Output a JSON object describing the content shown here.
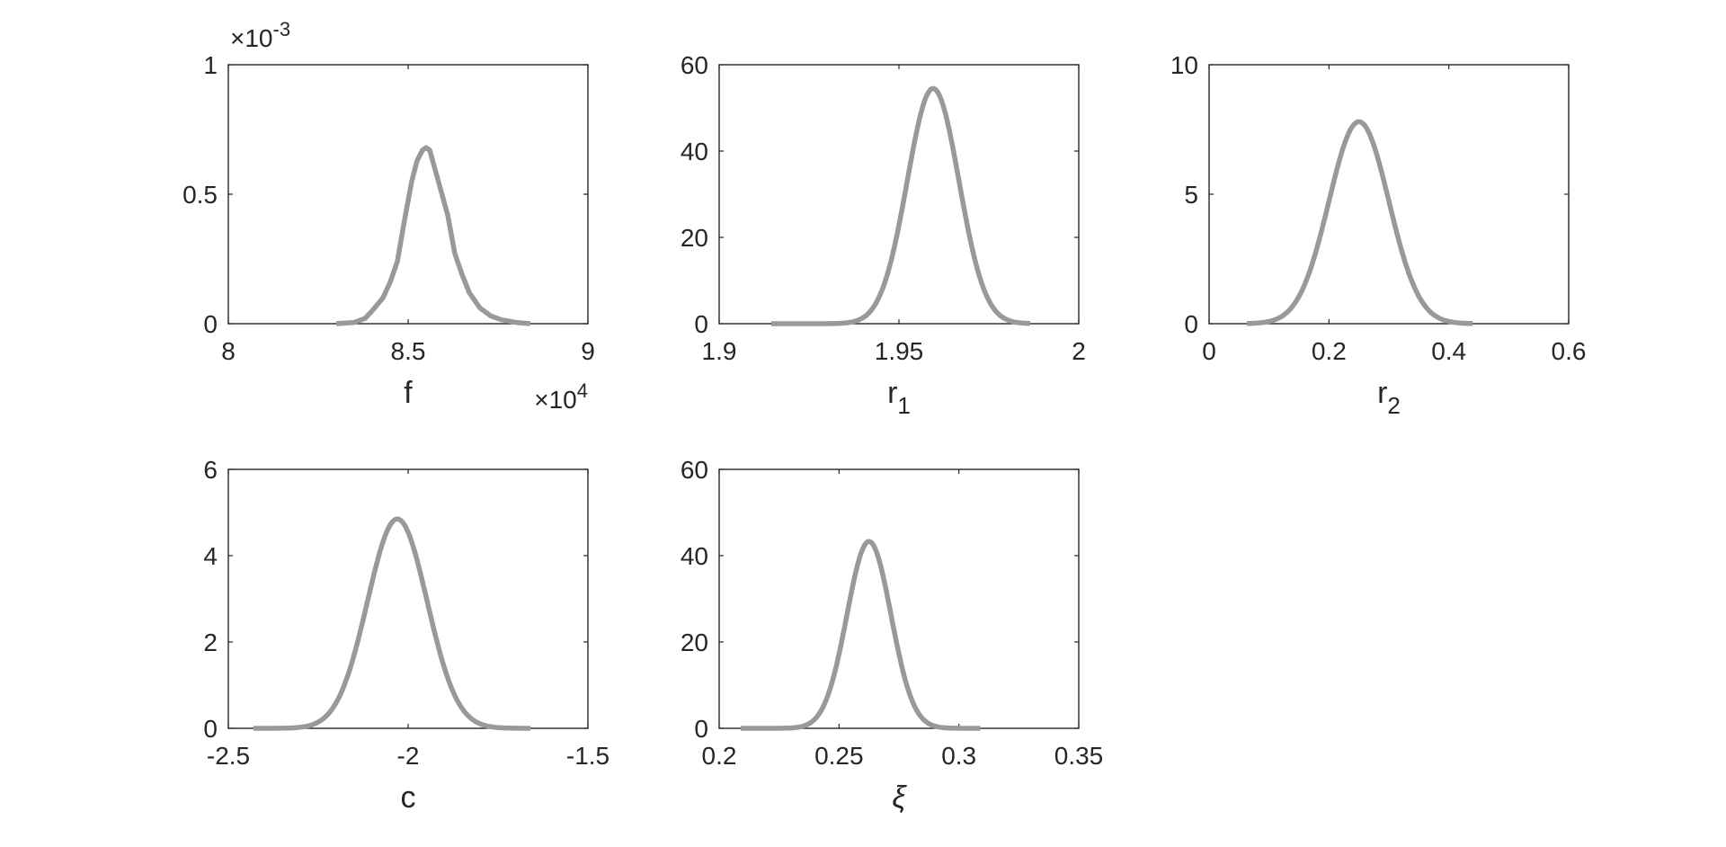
{
  "style": {
    "curve_color": "#999999",
    "axis_color": "#262626",
    "background": "#ffffff"
  },
  "chart_data": [
    {
      "type": "line",
      "xlabel": "f",
      "xlabel_sub": "",
      "x_exponent": "×10",
      "x_exponent_power": "4",
      "y_exponent": "×10",
      "y_exponent_power": "-3",
      "xlim": [
        8,
        9
      ],
      "ylim": [
        0,
        1
      ],
      "xticks": [
        8,
        8.5,
        9
      ],
      "xtick_labels": [
        "8",
        "8.5",
        "9"
      ],
      "yticks": [
        0,
        0.5,
        1
      ],
      "ytick_labels": [
        "0",
        "0.5",
        "1"
      ],
      "series": [
        {
          "x": [
            8.3,
            8.35,
            8.38,
            8.4,
            8.43,
            8.45,
            8.47,
            8.49,
            8.51,
            8.525,
            8.54,
            8.55,
            8.56,
            8.57,
            8.59,
            8.61,
            8.63,
            8.65,
            8.67,
            8.7,
            8.73,
            8.76,
            8.8,
            8.84
          ],
          "y": [
            0.0,
            0.005,
            0.02,
            0.05,
            0.1,
            0.16,
            0.24,
            0.4,
            0.55,
            0.63,
            0.67,
            0.68,
            0.67,
            0.62,
            0.52,
            0.42,
            0.27,
            0.19,
            0.12,
            0.06,
            0.03,
            0.015,
            0.005,
            0.0
          ]
        }
      ]
    },
    {
      "type": "line",
      "xlabel": "r",
      "xlabel_sub": "1",
      "x_exponent": "",
      "x_exponent_power": "",
      "y_exponent": "",
      "y_exponent_power": "",
      "xlim": [
        1.9,
        2
      ],
      "ylim": [
        0,
        60
      ],
      "xticks": [
        1.9,
        1.95,
        2
      ],
      "xtick_labels": [
        "1.9",
        "1.95",
        "2"
      ],
      "yticks": [
        0,
        20,
        40,
        60
      ],
      "ytick_labels": [
        "0",
        "20",
        "40",
        "60"
      ],
      "gauss": {
        "mu": 1.9595,
        "sigma": 0.0072,
        "peak": 54.5,
        "xmin": 1.9145,
        "xmax": 1.9865
      }
    },
    {
      "type": "line",
      "xlabel": "r",
      "xlabel_sub": "2",
      "x_exponent": "",
      "x_exponent_power": "",
      "y_exponent": "",
      "y_exponent_power": "",
      "xlim": [
        0,
        0.6
      ],
      "ylim": [
        0,
        10
      ],
      "xticks": [
        0,
        0.2,
        0.4,
        0.6
      ],
      "xtick_labels": [
        "0",
        "0.2",
        "0.4",
        "0.6"
      ],
      "yticks": [
        0,
        5,
        10
      ],
      "ytick_labels": [
        "0",
        "5",
        "10"
      ],
      "gauss": {
        "mu": 0.25,
        "sigma": 0.05,
        "peak": 7.8,
        "xmin": 0.063,
        "xmax": 0.44
      }
    },
    {
      "type": "line",
      "xlabel": "c",
      "xlabel_sub": "",
      "x_exponent": "",
      "x_exponent_power": "",
      "y_exponent": "",
      "y_exponent_power": "",
      "xlim": [
        -2.5,
        -1.5
      ],
      "ylim": [
        0,
        6
      ],
      "xticks": [
        -2.5,
        -2,
        -1.5
      ],
      "xtick_labels": [
        "-2.5",
        "-2",
        "-1.5"
      ],
      "yticks": [
        0,
        2,
        4,
        6
      ],
      "ytick_labels": [
        "0",
        "2",
        "4",
        "6"
      ],
      "gauss": {
        "mu": -2.03,
        "sigma": 0.083,
        "peak": 4.85,
        "xmin": -2.43,
        "xmax": -1.66
      }
    },
    {
      "type": "line",
      "xlabel": "ξ",
      "xlabel_sub": "",
      "x_exponent": "",
      "x_exponent_power": "",
      "y_exponent": "",
      "y_exponent_power": "",
      "xlim": [
        0.2,
        0.35
      ],
      "ylim": [
        0,
        60
      ],
      "xticks": [
        0.2,
        0.25,
        0.3,
        0.35
      ],
      "xtick_labels": [
        "0.2",
        "0.25",
        "0.3",
        "0.35"
      ],
      "yticks": [
        0,
        20,
        40,
        60
      ],
      "ytick_labels": [
        "0",
        "20",
        "40",
        "60"
      ],
      "gauss": {
        "mu": 0.2625,
        "sigma": 0.0092,
        "peak": 43.3,
        "xmin": 0.209,
        "xmax": 0.309
      }
    }
  ]
}
